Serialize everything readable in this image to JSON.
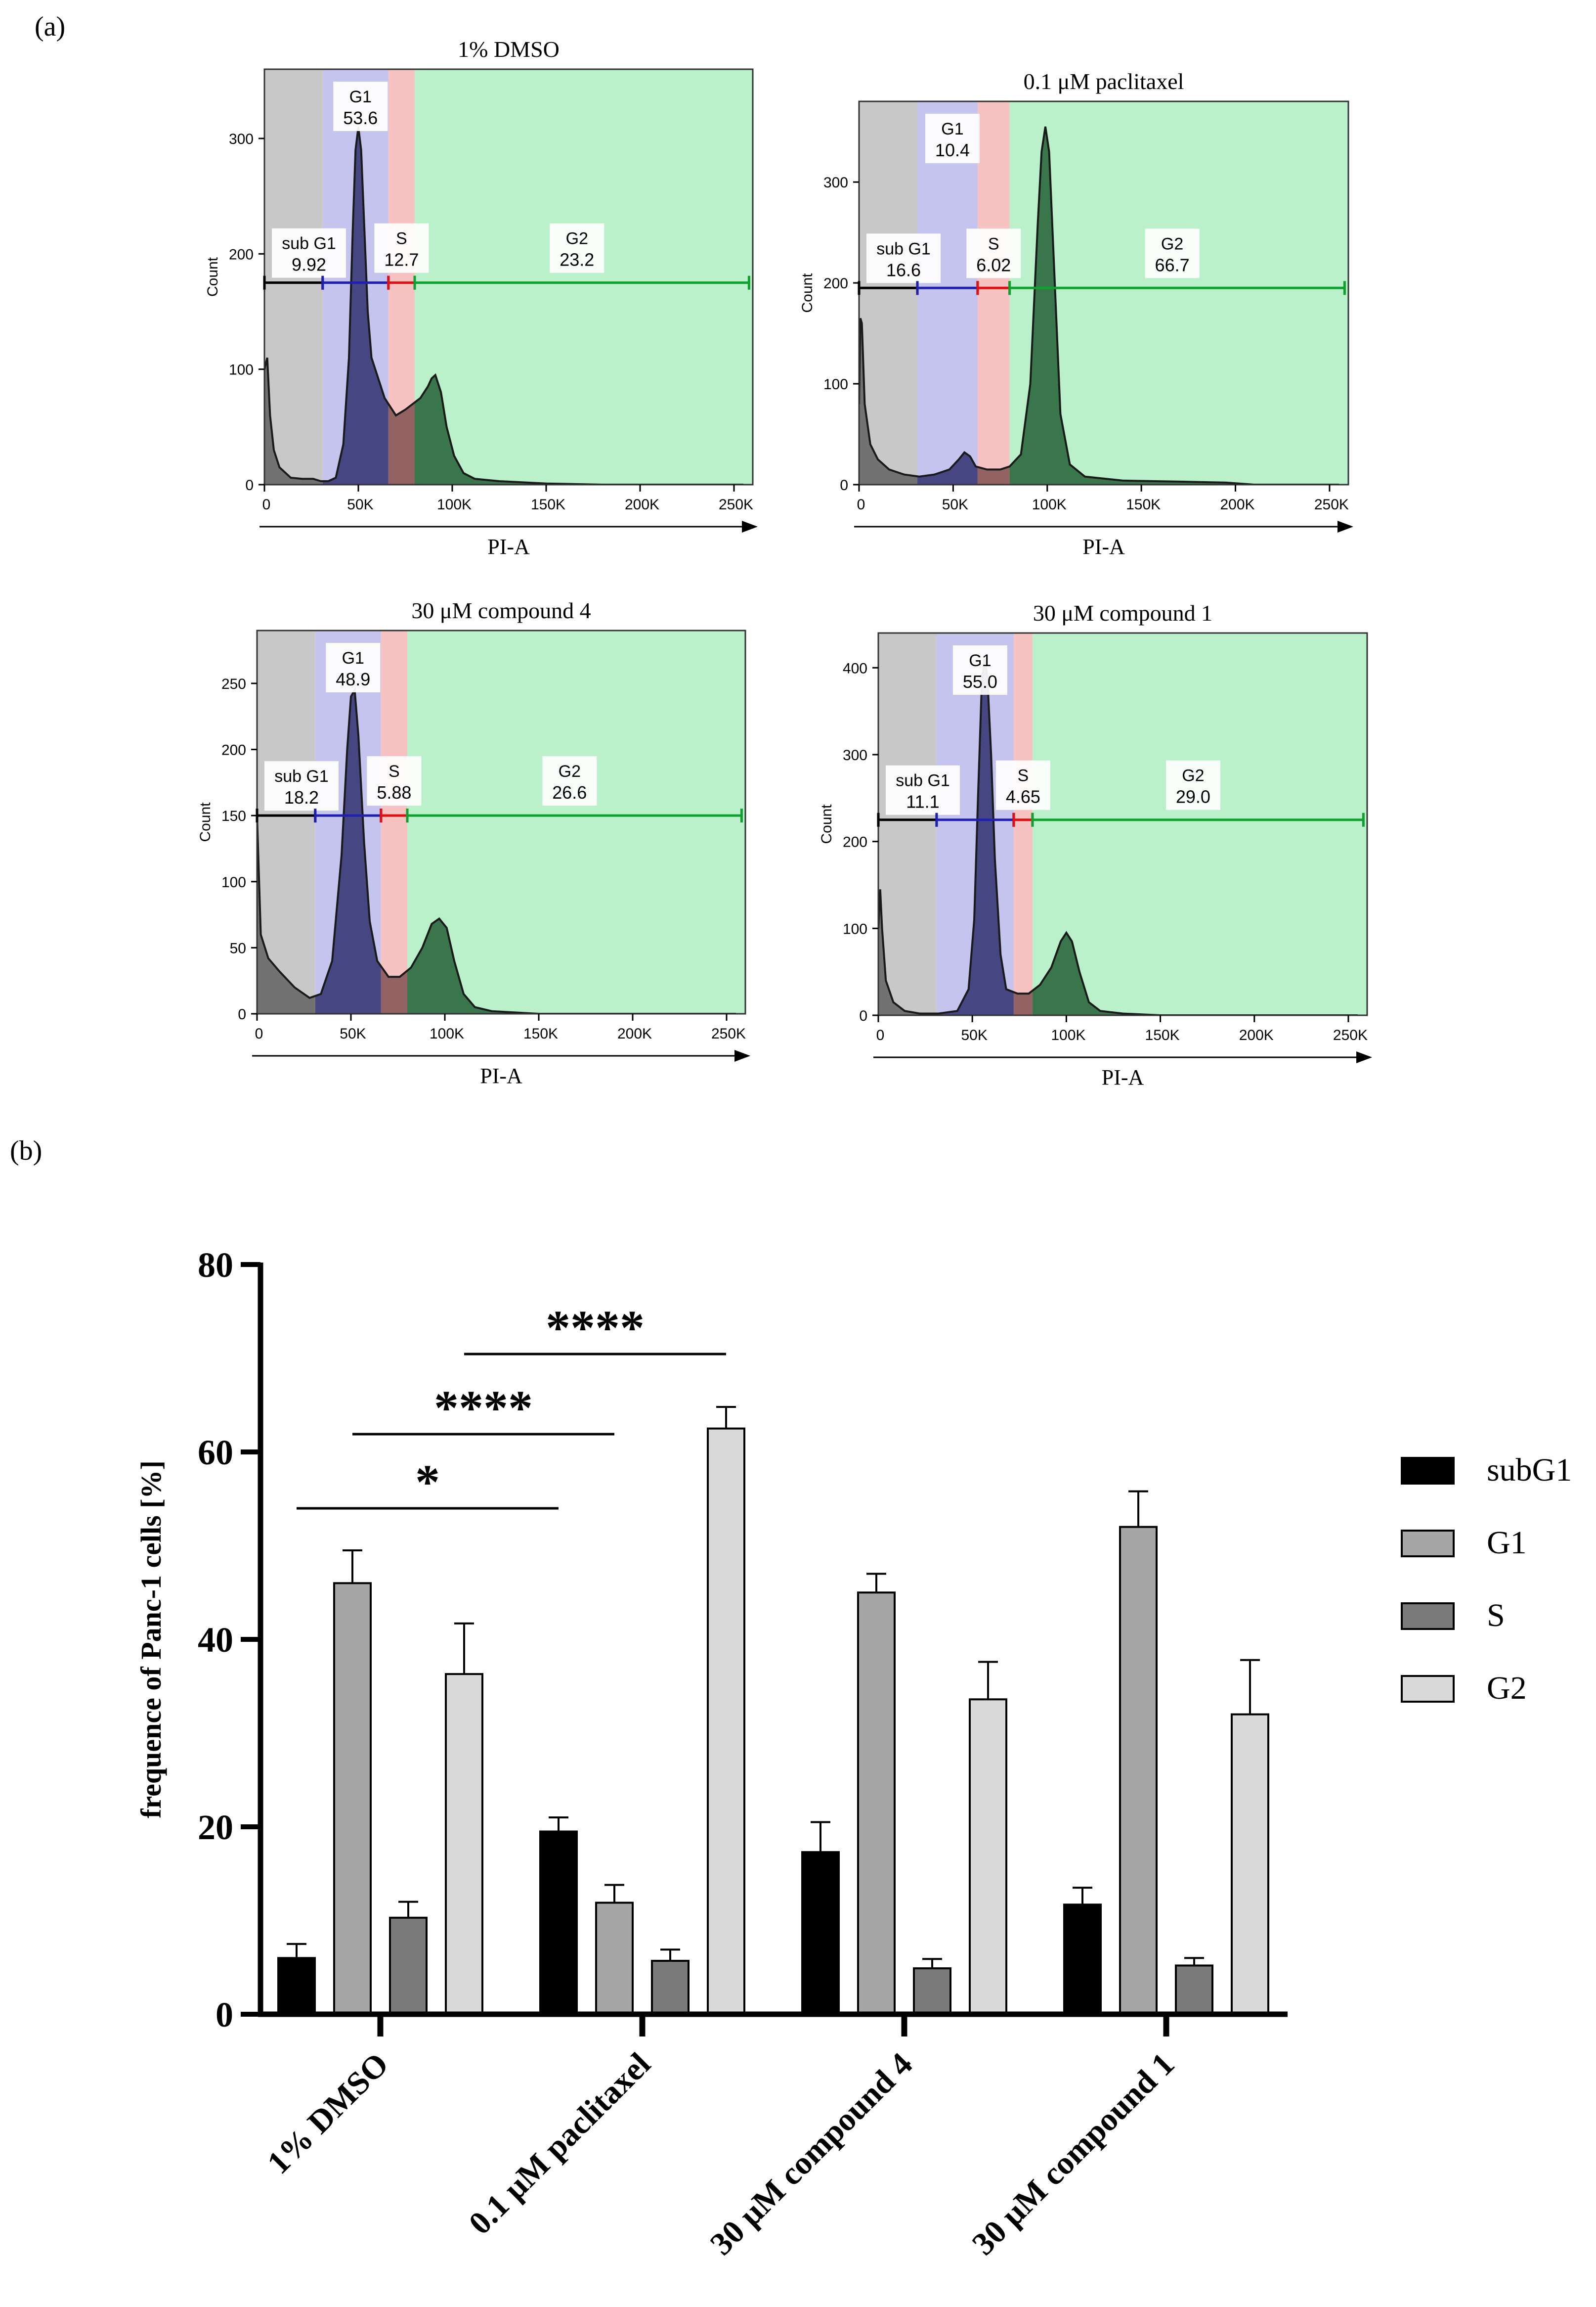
{
  "panel_labels": [
    "(a)",
    "(b)"
  ],
  "colors": {
    "subG1_region": "#c8c8c8",
    "G1_region": "#c4c4ef",
    "S_region": "#f7c2c2",
    "G2_region": "#baf0ca",
    "histogram_line": "#1a1a1a",
    "subG1_gate": "#000000",
    "G1_gate": "#2020b0",
    "S_gate": "#e01010",
    "G2_gate": "#10a030",
    "subG1_bar": "#000000",
    "G1_bar": "#a6a6a6",
    "S_bar": "#7a7a7a",
    "G2_bar": "#d9d9d9"
  },
  "chart_data": [
    {
      "type": "area",
      "title": "1% DMSO",
      "xlabel": "PI-A",
      "ylabel": "Count",
      "xlim": [
        0,
        260000
      ],
      "ylim": [
        0,
        360
      ],
      "x_ticks": [
        0,
        50000,
        100000,
        150000,
        200000,
        250000
      ],
      "x_tick_labels": [
        "0",
        "50K",
        "100K",
        "150K",
        "200K",
        "250K"
      ],
      "y_ticks": [
        0,
        100,
        200,
        300
      ],
      "y_tick_labels": [
        "0",
        "100",
        "200",
        "300"
      ],
      "gates": [
        {
          "name": "sub G1",
          "value": "9.92",
          "range": [
            0,
            31000
          ],
          "level": 175
        },
        {
          "name": "G1",
          "value": "53.6",
          "range": [
            31000,
            66000
          ],
          "level": 175
        },
        {
          "name": "S",
          "value": "12.7",
          "range": [
            66000,
            80000
          ],
          "level": 175
        },
        {
          "name": "G2",
          "value": "23.2",
          "range": [
            80000,
            258000
          ],
          "level": 175
        }
      ],
      "histogram": [
        [
          0,
          100
        ],
        [
          1500,
          110
        ],
        [
          3000,
          60
        ],
        [
          5000,
          30
        ],
        [
          8000,
          15
        ],
        [
          14000,
          6
        ],
        [
          20000,
          5
        ],
        [
          26000,
          5
        ],
        [
          30000,
          3
        ],
        [
          34000,
          3
        ],
        [
          38000,
          6
        ],
        [
          42000,
          35
        ],
        [
          45000,
          110
        ],
        [
          47000,
          220
        ],
        [
          48500,
          290
        ],
        [
          50000,
          310
        ],
        [
          51500,
          290
        ],
        [
          53000,
          230
        ],
        [
          55000,
          150
        ],
        [
          57000,
          110
        ],
        [
          60000,
          95
        ],
        [
          64000,
          75
        ],
        [
          70000,
          60
        ],
        [
          75000,
          65
        ],
        [
          79000,
          70
        ],
        [
          83000,
          75
        ],
        [
          87000,
          85
        ],
        [
          89000,
          92
        ],
        [
          91000,
          95
        ],
        [
          94000,
          80
        ],
        [
          97000,
          50
        ],
        [
          101000,
          25
        ],
        [
          106000,
          10
        ],
        [
          112000,
          5
        ],
        [
          125000,
          3
        ],
        [
          150000,
          1
        ],
        [
          180000,
          0
        ],
        [
          255000,
          0
        ]
      ]
    },
    {
      "type": "area",
      "title": "0.1 μM paclitaxel",
      "xlabel": "PI-A",
      "ylabel": "Count",
      "xlim": [
        0,
        260000
      ],
      "ylim": [
        0,
        380
      ],
      "x_ticks": [
        0,
        50000,
        100000,
        150000,
        200000,
        250000
      ],
      "x_tick_labels": [
        "0",
        "50K",
        "100K",
        "150K",
        "200K",
        "250K"
      ],
      "y_ticks": [
        0,
        100,
        200,
        300
      ],
      "y_tick_labels": [
        "0",
        "100",
        "200",
        "300"
      ],
      "gates": [
        {
          "name": "sub G1",
          "value": "16.6",
          "range": [
            0,
            31000
          ],
          "level": 195
        },
        {
          "name": "G1",
          "value": "10.4",
          "range": [
            31000,
            63000
          ],
          "level": 195
        },
        {
          "name": "S",
          "value": "6.02",
          "range": [
            63000,
            80000
          ],
          "level": 195
        },
        {
          "name": "G2",
          "value": "66.7",
          "range": [
            80000,
            258000
          ],
          "level": 195
        }
      ],
      "histogram": [
        [
          0,
          80
        ],
        [
          700,
          165
        ],
        [
          1500,
          160
        ],
        [
          3000,
          80
        ],
        [
          6000,
          40
        ],
        [
          10000,
          25
        ],
        [
          16000,
          15
        ],
        [
          24000,
          10
        ],
        [
          32000,
          8
        ],
        [
          40000,
          10
        ],
        [
          48000,
          15
        ],
        [
          53000,
          25
        ],
        [
          56000,
          32
        ],
        [
          59000,
          28
        ],
        [
          62000,
          18
        ],
        [
          68000,
          15
        ],
        [
          75000,
          15
        ],
        [
          80000,
          18
        ],
        [
          86000,
          30
        ],
        [
          91000,
          100
        ],
        [
          95000,
          260
        ],
        [
          97000,
          330
        ],
        [
          99000,
          355
        ],
        [
          101000,
          330
        ],
        [
          104000,
          200
        ],
        [
          107000,
          70
        ],
        [
          112000,
          20
        ],
        [
          120000,
          8
        ],
        [
          140000,
          4
        ],
        [
          170000,
          3
        ],
        [
          195000,
          2
        ],
        [
          210000,
          0
        ],
        [
          255000,
          0
        ]
      ]
    },
    {
      "type": "area",
      "title": "30 μM compound 4",
      "xlabel": "PI-A",
      "ylabel": "Count",
      "xlim": [
        0,
        260000
      ],
      "ylim": [
        0,
        290
      ],
      "x_ticks": [
        0,
        50000,
        100000,
        150000,
        200000,
        250000
      ],
      "x_tick_labels": [
        "0",
        "50K",
        "100K",
        "150K",
        "200K",
        "250K"
      ],
      "y_ticks": [
        0,
        50,
        100,
        150,
        200,
        250
      ],
      "y_tick_labels": [
        "0",
        "50",
        "100",
        "150",
        "200",
        "250"
      ],
      "gates": [
        {
          "name": "sub G1",
          "value": "18.2",
          "range": [
            0,
            31000
          ],
          "level": 150
        },
        {
          "name": "G1",
          "value": "48.9",
          "range": [
            31000,
            66000
          ],
          "level": 150
        },
        {
          "name": "S",
          "value": "5.88",
          "range": [
            66000,
            80000
          ],
          "level": 150
        },
        {
          "name": "G2",
          "value": "26.6",
          "range": [
            80000,
            258000
          ],
          "level": 150
        }
      ],
      "histogram": [
        [
          0,
          150
        ],
        [
          2000,
          60
        ],
        [
          6000,
          42
        ],
        [
          12000,
          32
        ],
        [
          20000,
          20
        ],
        [
          28000,
          12
        ],
        [
          34000,
          15
        ],
        [
          40000,
          40
        ],
        [
          45000,
          120
        ],
        [
          48000,
          200
        ],
        [
          50000,
          240
        ],
        [
          52000,
          245
        ],
        [
          54000,
          210
        ],
        [
          57000,
          130
        ],
        [
          60000,
          70
        ],
        [
          64000,
          40
        ],
        [
          70000,
          28
        ],
        [
          76000,
          28
        ],
        [
          82000,
          35
        ],
        [
          88000,
          50
        ],
        [
          93000,
          68
        ],
        [
          97000,
          72
        ],
        [
          101000,
          65
        ],
        [
          105000,
          40
        ],
        [
          110000,
          15
        ],
        [
          116000,
          5
        ],
        [
          125000,
          2
        ],
        [
          150000,
          0
        ],
        [
          255000,
          0
        ]
      ]
    },
    {
      "type": "area",
      "title": "30 μM compound 1",
      "xlabel": "PI-A",
      "ylabel": "Count",
      "xlim": [
        0,
        260000
      ],
      "ylim": [
        0,
        440
      ],
      "x_ticks": [
        0,
        50000,
        100000,
        150000,
        200000,
        250000
      ],
      "x_tick_labels": [
        "0",
        "50K",
        "100K",
        "150K",
        "200K",
        "250K"
      ],
      "y_ticks": [
        0,
        100,
        200,
        300,
        400
      ],
      "y_tick_labels": [
        "0",
        "100",
        "200",
        "300",
        "400"
      ],
      "gates": [
        {
          "name": "sub G1",
          "value": "11.1",
          "range": [
            0,
            31000
          ],
          "level": 225
        },
        {
          "name": "G1",
          "value": "55.0",
          "range": [
            31000,
            72000
          ],
          "level": 225
        },
        {
          "name": "S",
          "value": "4.65",
          "range": [
            72000,
            82000
          ],
          "level": 225
        },
        {
          "name": "G2",
          "value": "29.0",
          "range": [
            82000,
            258000
          ],
          "level": 225
        }
      ],
      "histogram": [
        [
          0,
          100
        ],
        [
          1000,
          145
        ],
        [
          2000,
          100
        ],
        [
          4000,
          40
        ],
        [
          8000,
          15
        ],
        [
          14000,
          5
        ],
        [
          22000,
          2
        ],
        [
          32000,
          2
        ],
        [
          42000,
          5
        ],
        [
          48000,
          30
        ],
        [
          51000,
          110
        ],
        [
          53000,
          250
        ],
        [
          55000,
          380
        ],
        [
          56500,
          410
        ],
        [
          58000,
          390
        ],
        [
          60000,
          300
        ],
        [
          62000,
          180
        ],
        [
          65000,
          70
        ],
        [
          68000,
          30
        ],
        [
          74000,
          25
        ],
        [
          80000,
          25
        ],
        [
          86000,
          35
        ],
        [
          92000,
          55
        ],
        [
          97000,
          85
        ],
        [
          100000,
          95
        ],
        [
          103000,
          85
        ],
        [
          107000,
          50
        ],
        [
          112000,
          15
        ],
        [
          118000,
          5
        ],
        [
          130000,
          2
        ],
        [
          150000,
          0
        ],
        [
          255000,
          0
        ]
      ]
    },
    {
      "type": "bar",
      "title": "",
      "xlabel": "",
      "ylabel": "frequence of Panc-1 cells [%]",
      "ylim": [
        0,
        80
      ],
      "y_ticks": [
        0,
        20,
        40,
        60,
        80
      ],
      "y_tick_labels": [
        "0",
        "20",
        "40",
        "60",
        "80"
      ],
      "categories": [
        "1% DMSO",
        "0.1 μM paclitaxel",
        "30 μM compound 4",
        "30 μM compound 1"
      ],
      "series": [
        {
          "name": "subG1",
          "values": [
            6.0,
            19.5,
            17.3,
            11.7
          ],
          "errors": [
            1.5,
            1.5,
            3.2,
            1.8
          ]
        },
        {
          "name": "G1",
          "values": [
            46.0,
            11.9,
            45.0,
            52.0
          ],
          "errors": [
            3.5,
            1.9,
            2.0,
            3.8
          ]
        },
        {
          "name": "S",
          "values": [
            10.3,
            5.7,
            4.9,
            5.2
          ],
          "errors": [
            1.7,
            1.2,
            1.0,
            0.8
          ]
        },
        {
          "name": "G2",
          "values": [
            36.3,
            62.5,
            33.6,
            32.0
          ],
          "errors": [
            5.4,
            2.3,
            4.0,
            5.8
          ]
        }
      ],
      "legend_position": "right",
      "significance": [
        {
          "label": "*",
          "from": "1% DMSO subG1",
          "to": "0.1 μM paclitaxel subG1"
        },
        {
          "label": "****",
          "from": "1% DMSO G1",
          "to": "0.1 μM paclitaxel G1"
        },
        {
          "label": "****",
          "from": "1% DMSO G2",
          "to": "0.1 μM paclitaxel G2"
        }
      ]
    }
  ]
}
